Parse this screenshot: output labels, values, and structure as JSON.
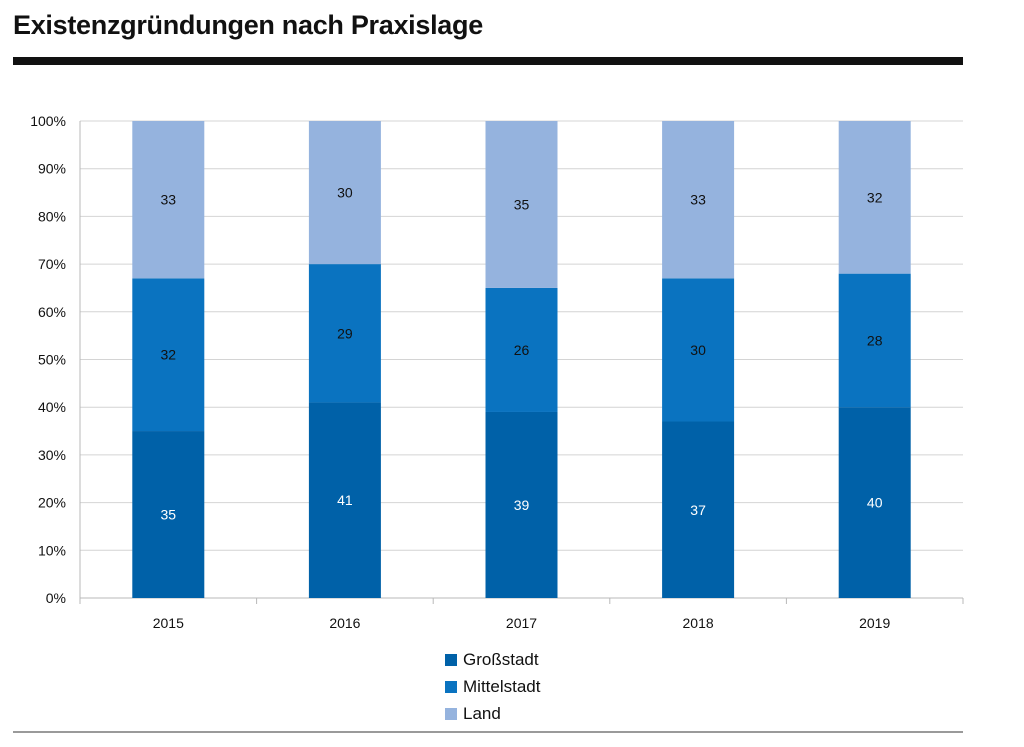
{
  "chart_data": {
    "type": "bar",
    "stacked": true,
    "title": "Existenzgründungen nach Praxislage",
    "categories": [
      "2015",
      "2016",
      "2017",
      "2018",
      "2019"
    ],
    "series": [
      {
        "name": "Großstadt",
        "values": [
          35,
          41,
          39,
          37,
          40
        ],
        "color": "#0061a8",
        "label_color": "#ffffff"
      },
      {
        "name": "Mittelstadt",
        "values": [
          32,
          29,
          26,
          30,
          28
        ],
        "color": "#0a73c0",
        "label_color": "#111111"
      },
      {
        "name": "Land",
        "values": [
          33,
          30,
          35,
          33,
          32
        ],
        "color": "#95b3de",
        "label_color": "#111111"
      }
    ],
    "y_ticks": [
      "0%",
      "10%",
      "20%",
      "30%",
      "40%",
      "50%",
      "60%",
      "70%",
      "80%",
      "90%",
      "100%"
    ],
    "ylim": [
      0,
      100
    ],
    "grid": true,
    "legend_position": "bottom-center"
  }
}
